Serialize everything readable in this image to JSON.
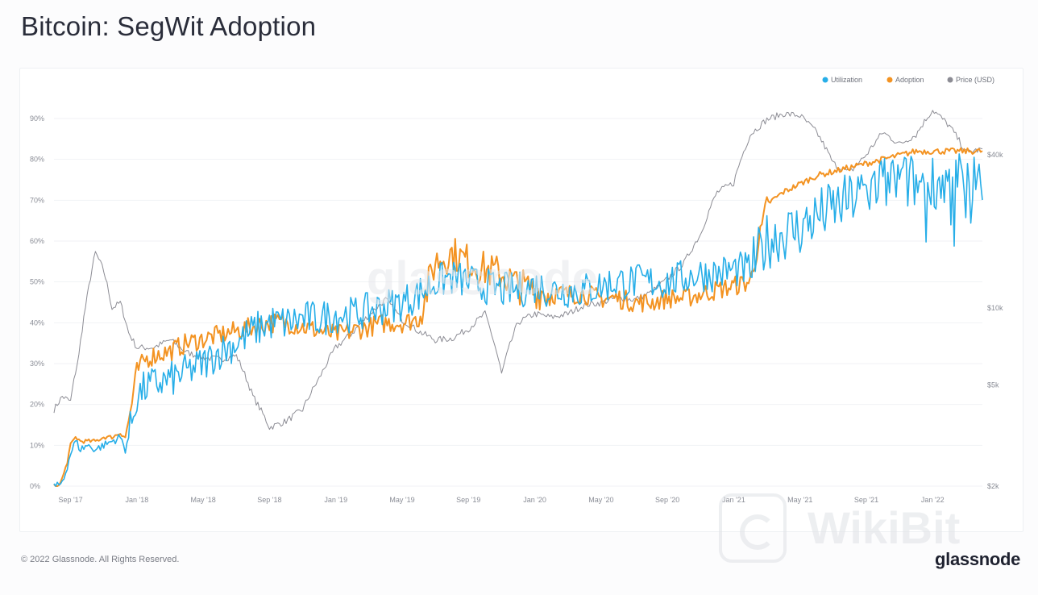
{
  "page": {
    "title": "Bitcoin: SegWit Adoption",
    "copyright": "© 2022 Glassnode. All Rights Reserved.",
    "brand": "glassnode",
    "watermark_center": "glassnode",
    "watermark_corner": "WikiBit"
  },
  "colors": {
    "utilization": "#27aee8",
    "adoption": "#f39322",
    "price": "#8c8c94",
    "grid": "#f1f2f5",
    "title": "#2a2d3a"
  },
  "legend": {
    "utilization": "Utilization",
    "adoption": "Adoption",
    "price": "Price (USD)"
  },
  "chart_data": {
    "type": "line",
    "title": "Bitcoin: SegWit Adoption",
    "x_ticks": [
      "Sep '17",
      "Jan '18",
      "May '18",
      "Sep '18",
      "Jan '19",
      "May '19",
      "Sep '19",
      "Jan '20",
      "May '20",
      "Sep '20",
      "Jan '21",
      "May '21",
      "Sep '21",
      "Jan '22"
    ],
    "x_start": "Aug '17",
    "x_end": "Mar '22",
    "y_left": {
      "ticks": [
        "0%",
        "10%",
        "20%",
        "30%",
        "40%",
        "50%",
        "60%",
        "70%",
        "80%",
        "90%"
      ],
      "range": [
        0,
        90
      ]
    },
    "y_right": {
      "ticks": [
        "$2k",
        "$5k",
        "$10k",
        "$40k"
      ],
      "scale": "log"
    },
    "legend_position": "top-right",
    "grid": true,
    "series": [
      {
        "name": "Utilization",
        "axis": "left",
        "t": [
          0,
          0.3,
          0.6,
          0.8,
          1.0,
          1.3,
          1.6,
          2.0,
          2.5,
          3.0,
          3.5,
          4.0,
          4.3,
          4.6,
          5.0,
          5.5,
          6.0,
          7.0,
          8.0,
          9.0,
          10.0,
          11.0,
          12.0,
          13.0,
          14.0,
          15.0,
          16.0,
          17.0,
          18.0,
          19.0,
          20.0,
          21.0,
          22.0,
          23.0,
          24.0,
          25.0,
          26.0,
          27.0,
          28.0,
          29.0,
          30.0,
          31.0,
          32.0,
          33.0,
          34.0,
          35.0,
          36.0,
          37.0,
          38.0,
          39.0,
          40.0,
          41.0,
          42.0,
          43.0,
          44.0,
          45.0,
          46.0,
          47.0,
          48.0,
          49.0,
          50.0,
          51.0,
          52.0,
          53.0,
          54.0,
          55.0,
          56.0
        ],
        "values": [
          0,
          0,
          2,
          5,
          8,
          11,
          9,
          10,
          9,
          10,
          11,
          12,
          9,
          14,
          22,
          24,
          25,
          26,
          28,
          30,
          33,
          35,
          38,
          40,
          40,
          41,
          41,
          42,
          42,
          43,
          44,
          45,
          47,
          50,
          51,
          50,
          49,
          48,
          48,
          49,
          48,
          48,
          48,
          49,
          50,
          50,
          50,
          50,
          51,
          52,
          52,
          53,
          53,
          60,
          62,
          63,
          66,
          68,
          70,
          72,
          74,
          75,
          74,
          75,
          74,
          75,
          75
        ]
      },
      {
        "name": "Adoption",
        "axis": "left",
        "t": [
          0,
          0.3,
          0.6,
          0.8,
          1.0,
          1.3,
          1.6,
          2.0,
          2.5,
          3.0,
          3.5,
          4.0,
          4.3,
          4.6,
          5.0,
          5.5,
          6.0,
          7.0,
          8.0,
          9.0,
          10.0,
          11.0,
          12.0,
          13.0,
          14.0,
          15.0,
          16.0,
          17.0,
          18.0,
          19.0,
          20.0,
          21.0,
          22.0,
          23.0,
          24.0,
          25.0,
          26.0,
          27.0,
          28.0,
          29.0,
          30.0,
          31.0,
          32.0,
          33.0,
          34.0,
          35.0,
          36.0,
          37.0,
          38.0,
          39.0,
          40.0,
          41.0,
          42.0,
          43.0,
          44.0,
          45.0,
          46.0,
          47.0,
          48.0,
          49.0,
          50.0,
          51.0,
          52.0,
          53.0,
          54.0,
          55.0,
          56.0
        ],
        "values": [
          0,
          0,
          3,
          6,
          10,
          12,
          11,
          11,
          11,
          12,
          12,
          13,
          12,
          18,
          28,
          31,
          32,
          33,
          35,
          36,
          37,
          38,
          39,
          40,
          40,
          39,
          38,
          37,
          38,
          39,
          40,
          40,
          41,
          55,
          57,
          55,
          53,
          52,
          49,
          48,
          47,
          47,
          47,
          46,
          46,
          45,
          45,
          46,
          46,
          47,
          48,
          49,
          50,
          69,
          72,
          74,
          76,
          77,
          78,
          79,
          80,
          81,
          82,
          82,
          82,
          82,
          82
        ]
      },
      {
        "name": "Price (USD)",
        "axis": "right",
        "t": [
          0,
          0.5,
          1,
          1.5,
          2,
          2.5,
          3,
          3.5,
          4,
          4.5,
          5,
          6,
          7,
          8,
          9,
          10,
          11,
          12,
          13,
          14,
          15,
          16,
          17,
          18,
          19,
          20,
          21,
          22,
          23,
          24,
          25,
          26,
          27,
          28,
          29,
          30,
          31,
          32,
          33,
          34,
          35,
          36,
          37,
          38,
          39,
          40,
          41,
          42,
          43,
          44,
          45,
          46,
          47,
          48,
          49,
          50,
          51,
          52,
          53,
          54,
          55,
          56
        ],
        "values": [
          4000,
          4500,
          4300,
          6500,
          11000,
          16500,
          14000,
          10000,
          10500,
          8000,
          7000,
          7000,
          7500,
          6700,
          6400,
          6300,
          6500,
          4500,
          3400,
          3600,
          4000,
          5300,
          7000,
          8000,
          9400,
          10800,
          9000,
          8100,
          7500,
          7600,
          8300,
          9500,
          5500,
          8800,
          9500,
          9200,
          9500,
          10300,
          10500,
          11000,
          10800,
          11500,
          13000,
          15000,
          19500,
          28500,
          31000,
          48000,
          55000,
          58000,
          57000,
          49000,
          37000,
          34000,
          40000,
          49000,
          44000,
          48000,
          60000,
          52000,
          41000,
          42000
        ]
      }
    ]
  }
}
